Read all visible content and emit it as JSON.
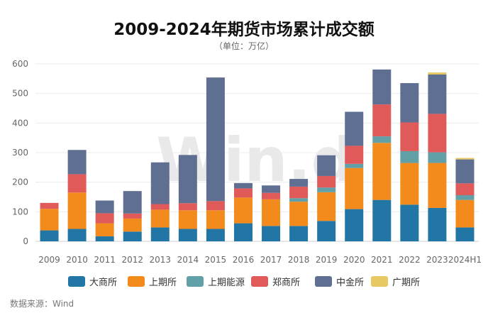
{
  "chart_data": {
    "type": "bar",
    "stacked": true,
    "title": "2009-2024年期货市场累计成交额",
    "subtitle": "（单位：万亿）",
    "source": "数据来源：Wind",
    "watermark": "Win.d",
    "categories": [
      "2009",
      "2010",
      "2011",
      "2012",
      "2013",
      "2014",
      "2015",
      "2016",
      "2017",
      "2018",
      "2019",
      "2020",
      "2021",
      "2022",
      "2023",
      "2024H1"
    ],
    "ylim": [
      0,
      600
    ],
    "yticks": [
      0,
      100,
      200,
      300,
      400,
      500,
      600
    ],
    "grid": true,
    "legend_position": "bottom",
    "series": [
      {
        "name": "大商所",
        "color": "#2176a5",
        "values": [
          37,
          42,
          17,
          33,
          47,
          42,
          42,
          61,
          52,
          52,
          69,
          109,
          140,
          124,
          113,
          47
        ]
      },
      {
        "name": "上期所",
        "color": "#f28a1c",
        "values": [
          73,
          123,
          44,
          44,
          60,
          63,
          63,
          87,
          90,
          82,
          97,
          139,
          193,
          141,
          152,
          93
        ]
      },
      {
        "name": "上期能源",
        "color": "#62a0a8",
        "values": [
          0,
          0,
          0,
          0,
          0,
          0,
          0,
          0,
          0,
          12,
          16,
          14,
          22,
          40,
          36,
          16
        ]
      },
      {
        "name": "郑商所",
        "color": "#e05a5a",
        "values": [
          20,
          62,
          34,
          17,
          19,
          24,
          31,
          31,
          22,
          39,
          39,
          61,
          108,
          97,
          130,
          40
        ]
      },
      {
        "name": "中金所",
        "color": "#5e6f92",
        "values": [
          0,
          82,
          43,
          76,
          141,
          163,
          418,
          18,
          25,
          26,
          70,
          115,
          118,
          133,
          133,
          81
        ]
      },
      {
        "name": "广期所",
        "color": "#e8c863",
        "values": [
          0,
          0,
          0,
          0,
          0,
          0,
          0,
          0,
          0,
          0,
          0,
          0,
          0,
          0,
          7,
          5
        ]
      }
    ]
  }
}
